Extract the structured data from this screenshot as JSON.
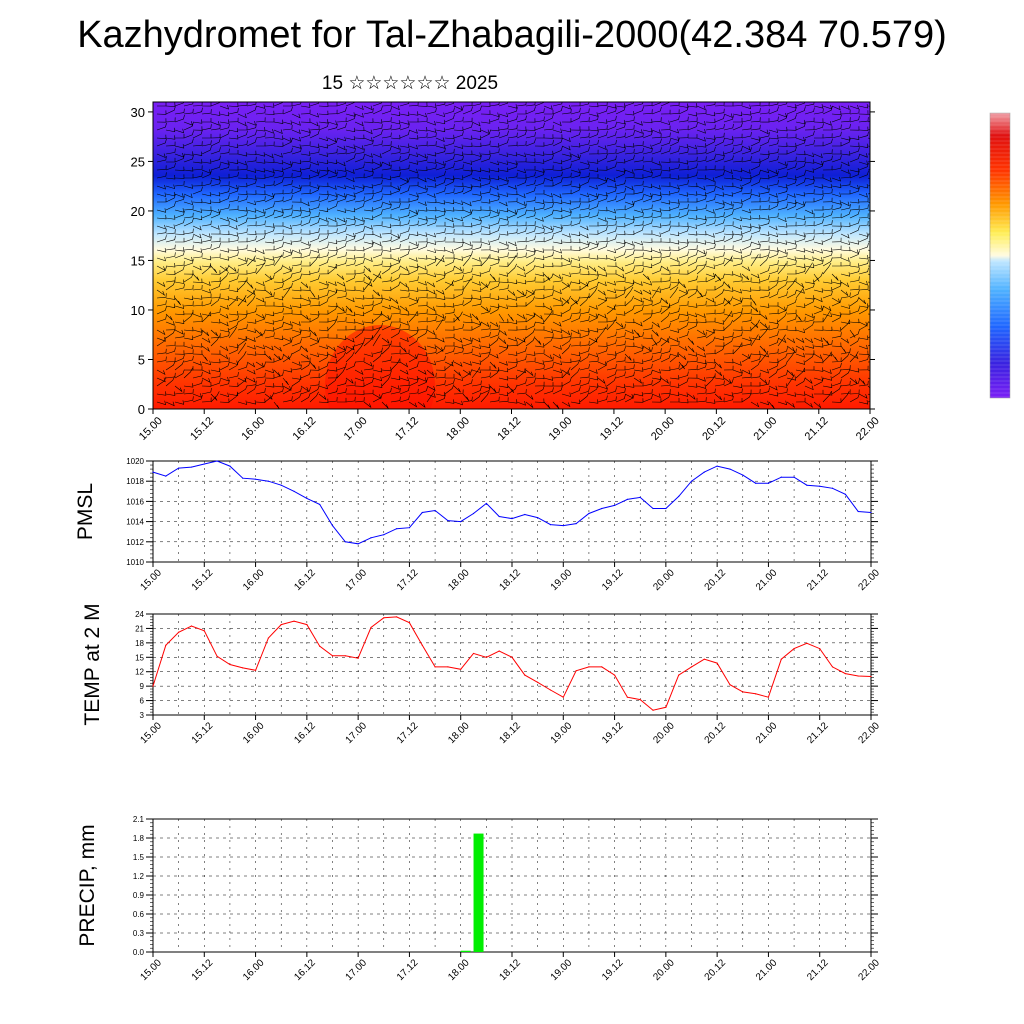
{
  "title": "Kazhydromet for Tal-Zhabagili-2000(42.384 70.579)",
  "subtitle": "15 ☆☆☆☆☆☆ 2025",
  "time_ticks": [
    "15.00",
    "15.12",
    "16.00",
    "16.12",
    "17.00",
    "17.12",
    "18.00",
    "18.12",
    "19.00",
    "19.12",
    "20.00",
    "20.12",
    "21.00",
    "21.12",
    "22.00"
  ],
  "colors": {
    "pmsl_line": "#0000ff",
    "temp_line": "#ff0000",
    "precip_bar": "#00ee00"
  },
  "chart_data": [
    {
      "type": "heatmap",
      "title": "",
      "xlabel": "",
      "ylabel": "",
      "ylim": [
        0,
        31
      ],
      "yticks": [
        0,
        5,
        10,
        15,
        20,
        25,
        30
      ],
      "overlay": "wind barbs",
      "colorscale": "violet-blue-cyan-white-yellow-orange-red-pink",
      "colorbar_labels": false,
      "description_levels": [
        {
          "level": 30,
          "band": "violet"
        },
        {
          "level": 24,
          "band": "dark blue"
        },
        {
          "level": 20,
          "band": "light blue"
        },
        {
          "level": 16,
          "band": "white/light yellow"
        },
        {
          "level": 12,
          "band": "yellow-orange"
        },
        {
          "level": 5,
          "band": "orange-red"
        }
      ]
    },
    {
      "type": "line",
      "ylabel": "PMSL",
      "ylim": [
        1010,
        1020
      ],
      "yticks": [
        1010,
        1012,
        1014,
        1016,
        1018,
        1020
      ],
      "x_hours": [
        0,
        3,
        6,
        9,
        12,
        15,
        18,
        21,
        24,
        27,
        30,
        33,
        36,
        39,
        42,
        45,
        48,
        51,
        54,
        57,
        60,
        63,
        66,
        69,
        72,
        75,
        78,
        81,
        84,
        87,
        90,
        93,
        96,
        99,
        102,
        105,
        108,
        111,
        114,
        117,
        120,
        123,
        126,
        129,
        132,
        135,
        138,
        141,
        144,
        147,
        150,
        153,
        156,
        159,
        162,
        165,
        168
      ],
      "values": [
        1018.9,
        1018.5,
        1019.3,
        1019.4,
        1019.7,
        1020.0,
        1019.5,
        1018.3,
        1018.2,
        1018.0,
        1017.6,
        1017.0,
        1016.3,
        1015.7,
        1013.6,
        1012.0,
        1011.8,
        1012.4,
        1012.7,
        1013.3,
        1013.4,
        1014.9,
        1015.1,
        1014.1,
        1014.0,
        1014.8,
        1015.8,
        1014.5,
        1014.3,
        1014.7,
        1014.4,
        1013.7,
        1013.6,
        1013.8,
        1014.8,
        1015.3,
        1015.6,
        1016.2,
        1016.4,
        1015.3,
        1015.3,
        1016.5,
        1018.0,
        1018.9,
        1019.5,
        1019.2,
        1018.6,
        1017.8,
        1017.8,
        1018.4,
        1018.4,
        1017.6,
        1017.5,
        1017.3,
        1016.7,
        1015.0,
        1014.9
      ]
    },
    {
      "type": "line",
      "ylabel": "TEMP at 2 M",
      "ylim": [
        3,
        24
      ],
      "yticks": [
        3,
        6,
        9,
        12,
        15,
        18,
        21,
        24
      ],
      "x_hours": [
        0,
        3,
        6,
        9,
        12,
        15,
        18,
        21,
        24,
        27,
        30,
        33,
        36,
        39,
        42,
        45,
        48,
        51,
        54,
        57,
        60,
        63,
        66,
        69,
        72,
        75,
        78,
        81,
        84,
        87,
        90,
        93,
        96,
        99,
        102,
        105,
        108,
        111,
        114,
        117,
        120,
        123,
        126,
        129,
        132,
        135,
        138,
        141,
        144,
        147,
        150,
        153,
        156,
        159,
        162,
        165,
        168
      ],
      "values": [
        9.0,
        17.5,
        20.2,
        21.5,
        20.5,
        15.2,
        13.5,
        12.8,
        12.3,
        19.0,
        21.8,
        22.5,
        21.8,
        17.3,
        15.3,
        15.3,
        14.8,
        21.2,
        23.2,
        23.4,
        22.2,
        17.5,
        13.0,
        13.0,
        12.5,
        15.8,
        15.0,
        16.3,
        15.0,
        11.3,
        9.8,
        8.2,
        6.7,
        12.2,
        13.0,
        13.0,
        11.3,
        6.7,
        6.2,
        4.0,
        4.6,
        11.3,
        13.0,
        14.6,
        13.8,
        9.3,
        7.8,
        7.4,
        6.7,
        14.6,
        16.8,
        17.9,
        16.8,
        13.0,
        11.6,
        11.1,
        11.0
      ]
    },
    {
      "type": "bar",
      "ylabel": "PRECIP, mm",
      "ylim": [
        0,
        2.1
      ],
      "yticks": [
        "0.0",
        "0.3",
        "0.6",
        "0.9",
        "1.2",
        "1.5",
        "1.8",
        "2.1"
      ],
      "x_hours": [
        72,
        75
      ],
      "values": [
        0.02,
        1.87
      ]
    }
  ]
}
